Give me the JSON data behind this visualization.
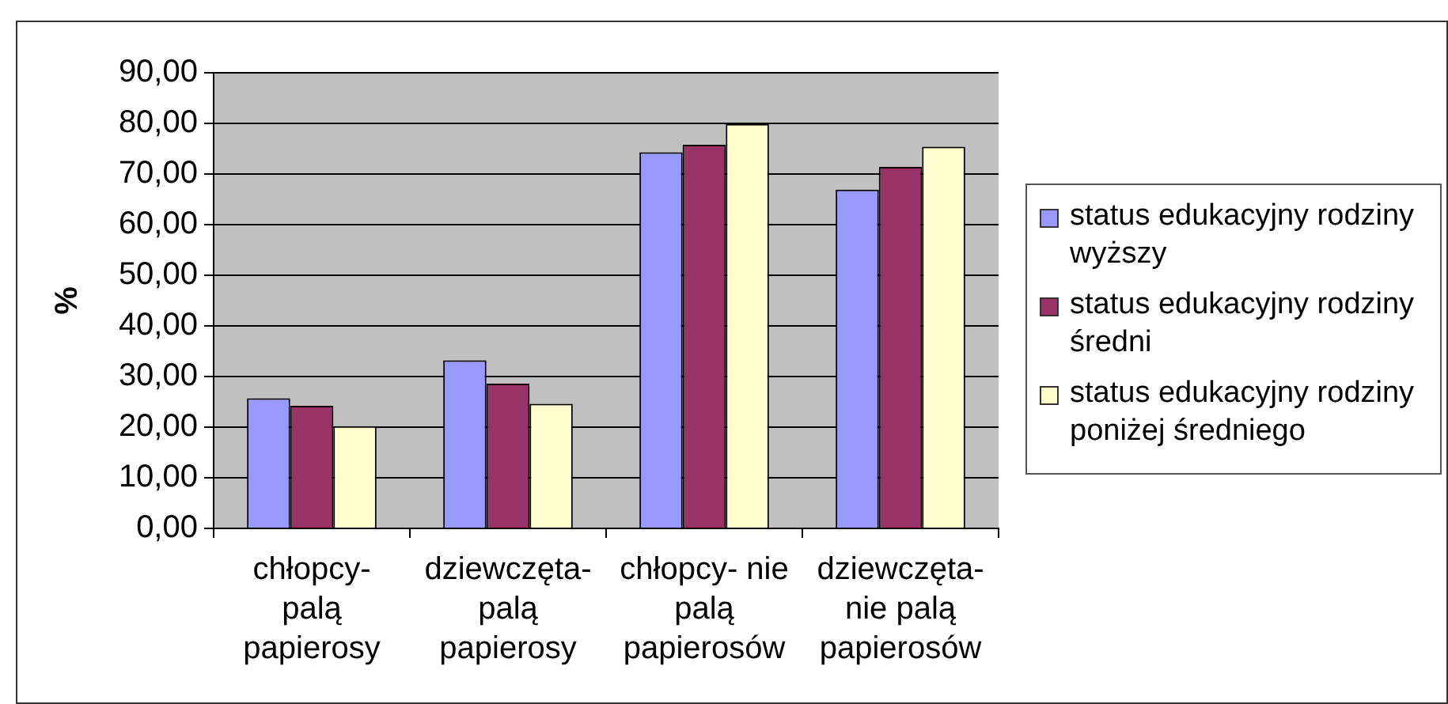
{
  "chart_data": {
    "type": "bar",
    "categories": [
      "chłopcy- palą papierosy",
      "dziewczęta- palą papierosy",
      "chłopcy- nie palą papierosów",
      "dziewczęta- nie palą papierosów"
    ],
    "series": [
      {
        "name": "status edukacyjny rodziny wyższy",
        "color": "#9999ff",
        "values": [
          25.7,
          33.2,
          74.3,
          66.9
        ]
      },
      {
        "name": "status edukacyjny rodziny średni",
        "color": "#993366",
        "values": [
          24.2,
          28.6,
          75.8,
          71.4
        ]
      },
      {
        "name": "status edukacyjny rodziny poniżej średniego",
        "color": "#ffffcc",
        "values": [
          20.2,
          24.6,
          79.9,
          75.4
        ]
      }
    ],
    "ylabel": "%",
    "ylim": [
      0,
      90
    ],
    "yticks": [
      {
        "value": 0,
        "label": "0,00"
      },
      {
        "value": 10,
        "label": "10,00"
      },
      {
        "value": 20,
        "label": "20,00"
      },
      {
        "value": 30,
        "label": "30,00"
      },
      {
        "value": 40,
        "label": "40,00"
      },
      {
        "value": 50,
        "label": "50,00"
      },
      {
        "value": 60,
        "label": "60,00"
      },
      {
        "value": 70,
        "label": "70,00"
      },
      {
        "value": 80,
        "label": "80,00"
      },
      {
        "value": 90,
        "label": "90,00"
      }
    ],
    "grid": "y",
    "legend": "right"
  }
}
